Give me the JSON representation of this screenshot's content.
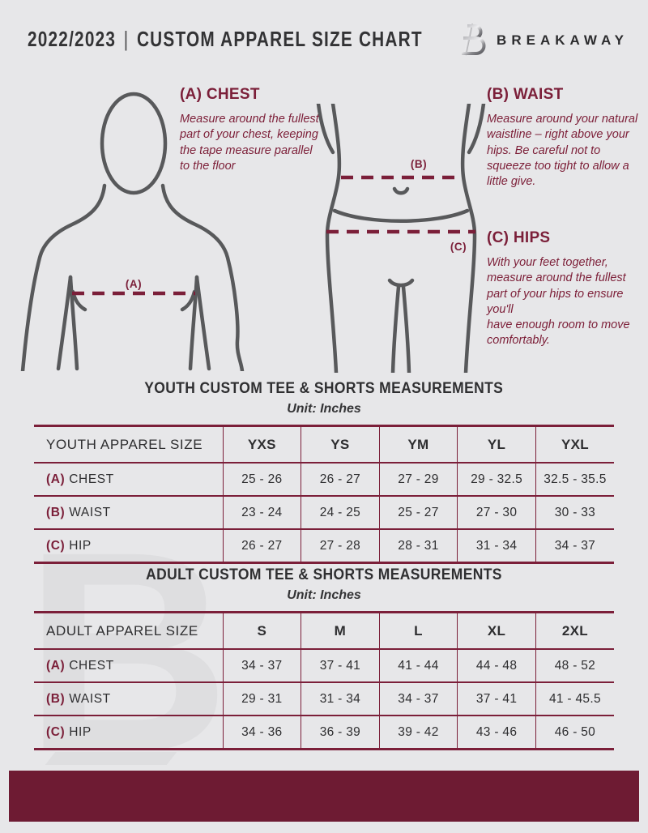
{
  "colors": {
    "bg": "#e7e7e9",
    "ink": "#333335",
    "accent": "#7b1f39",
    "accent2": "#7d2039",
    "fig": "#58595b",
    "bar": "#6e1b33",
    "wm": "#dedee0"
  },
  "header": {
    "year": "2022/2023",
    "divider": "|",
    "title": "CUSTOM APPAREL SIZE CHART",
    "brand": "BREAKAWAY",
    "watermark": "B"
  },
  "measure_guide": {
    "chest": {
      "marker": "(A)",
      "heading": "(A) CHEST",
      "body": "Measure around the fullest part of your chest, keeping the tape measure parallel to the floor"
    },
    "waist": {
      "marker": "(B)",
      "heading": "(B) WAIST",
      "body": "Measure around your natural waistline – right above your hips. Be careful not to squeeze too tight to allow a little give."
    },
    "hips": {
      "marker": "(C)",
      "heading": "(C) HIPS",
      "body": "With your feet together, measure around the fullest part of your hips to ensure you'll\nhave enough room to move comfortably."
    }
  },
  "youth_table": {
    "title": "YOUTH CUSTOM TEE & SHORTS MEASUREMENTS",
    "unit": "Unit: Inches",
    "size_label": "YOUTH APPAREL SIZE",
    "columns": [
      "YXS",
      "YS",
      "YM",
      "YL",
      "YXL"
    ],
    "rows": [
      {
        "key": "(A)",
        "name": "CHEST",
        "values": [
          "25 - 26",
          "26 - 27",
          "27 - 29",
          "29 - 32.5",
          "32.5 - 35.5"
        ]
      },
      {
        "key": "(B)",
        "name": "WAIST",
        "values": [
          "23 - 24",
          "24 - 25",
          "25 - 27",
          "27 - 30",
          "30 - 33"
        ]
      },
      {
        "key": "(C)",
        "name": "HIP",
        "values": [
          "26 - 27",
          "27 - 28",
          "28 - 31",
          "31 - 34",
          "34 - 37"
        ]
      }
    ]
  },
  "adult_table": {
    "title": "ADULT CUSTOM TEE & SHORTS MEASUREMENTS",
    "unit": "Unit: Inches",
    "size_label": "ADULT APPAREL SIZE",
    "columns": [
      "S",
      "M",
      "L",
      "XL",
      "2XL"
    ],
    "rows": [
      {
        "key": "(A)",
        "name": "CHEST",
        "values": [
          "34 - 37",
          "37 - 41",
          "41 - 44",
          "44 - 48",
          "48 - 52"
        ]
      },
      {
        "key": "(B)",
        "name": "WAIST",
        "values": [
          "29 - 31",
          "31 - 34",
          "34 - 37",
          "37 - 41",
          "41 - 45.5"
        ]
      },
      {
        "key": "(C)",
        "name": "HIP",
        "values": [
          "34 - 36",
          "36 - 39",
          "39 - 42",
          "43 - 46",
          "46 - 50"
        ]
      }
    ]
  }
}
